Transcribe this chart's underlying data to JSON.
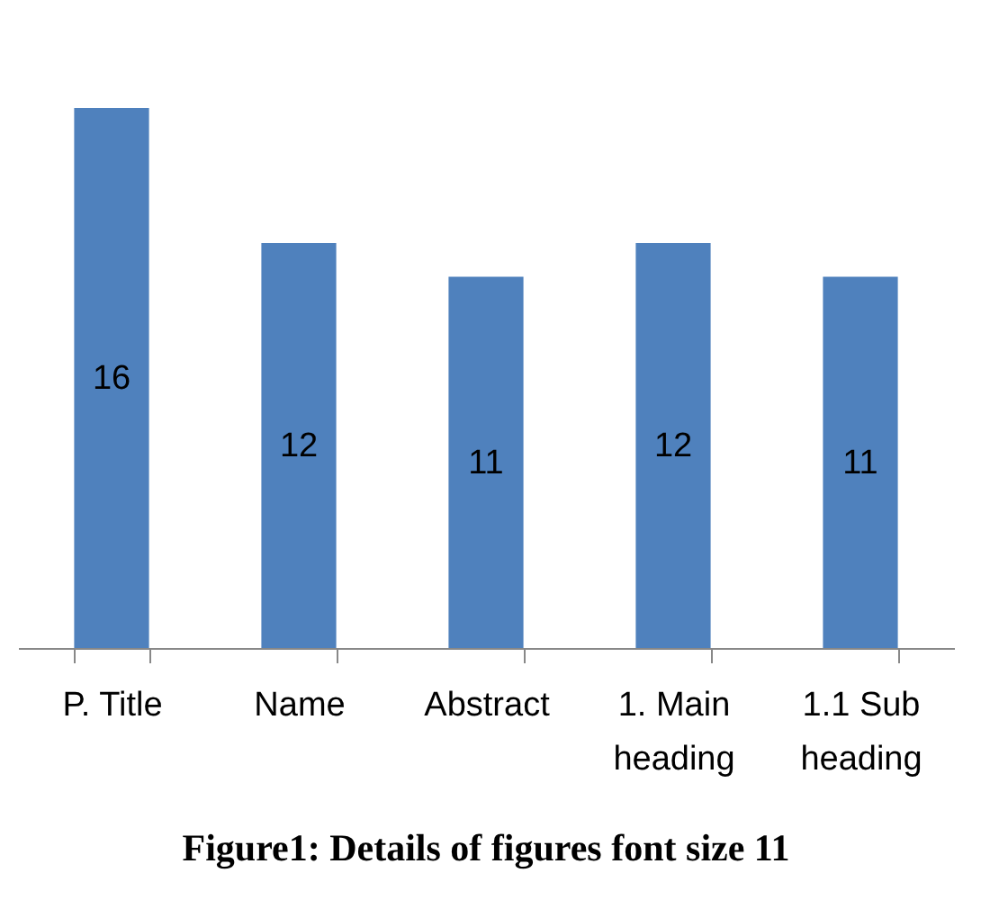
{
  "chart_data": {
    "type": "bar",
    "title": "Figure1: Details of figures font size 11",
    "categories": [
      "P. Title",
      "Name",
      "Abstract",
      "1. Main heading",
      "1.1 Sub heading"
    ],
    "values": [
      16,
      12,
      11,
      12,
      11
    ],
    "color": "#4f81bd",
    "data_labels": true,
    "tick_labels": "x"
  }
}
